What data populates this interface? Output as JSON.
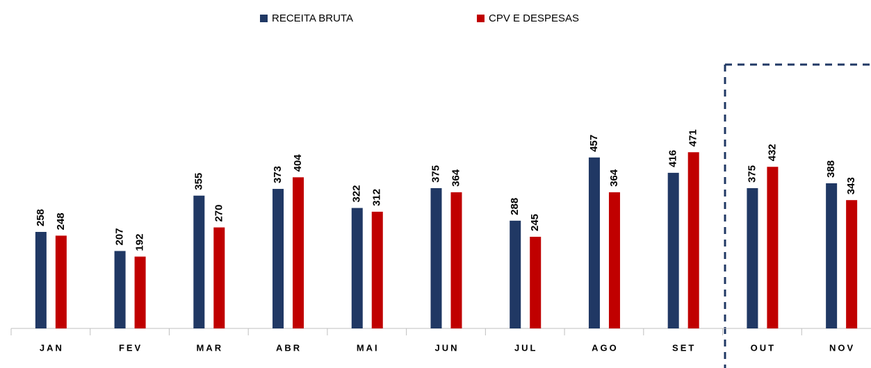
{
  "chart_data": {
    "type": "bar",
    "categories": [
      "JAN",
      "FEV",
      "MAR",
      "ABR",
      "MAI",
      "JUN",
      "JUL",
      "AGO",
      "SET",
      "OUT",
      "NOV"
    ],
    "series": [
      {
        "name": "RECEITA BRUTA",
        "color": "#203864",
        "values": [
          258,
          207,
          355,
          373,
          322,
          375,
          288,
          457,
          416,
          375,
          388
        ]
      },
      {
        "name": "CPV E DESPESAS",
        "color": "#c00000",
        "values": [
          248,
          192,
          270,
          404,
          312,
          364,
          245,
          364,
          471,
          432,
          343
        ]
      }
    ],
    "ylim": [
      0,
      800
    ]
  }
}
